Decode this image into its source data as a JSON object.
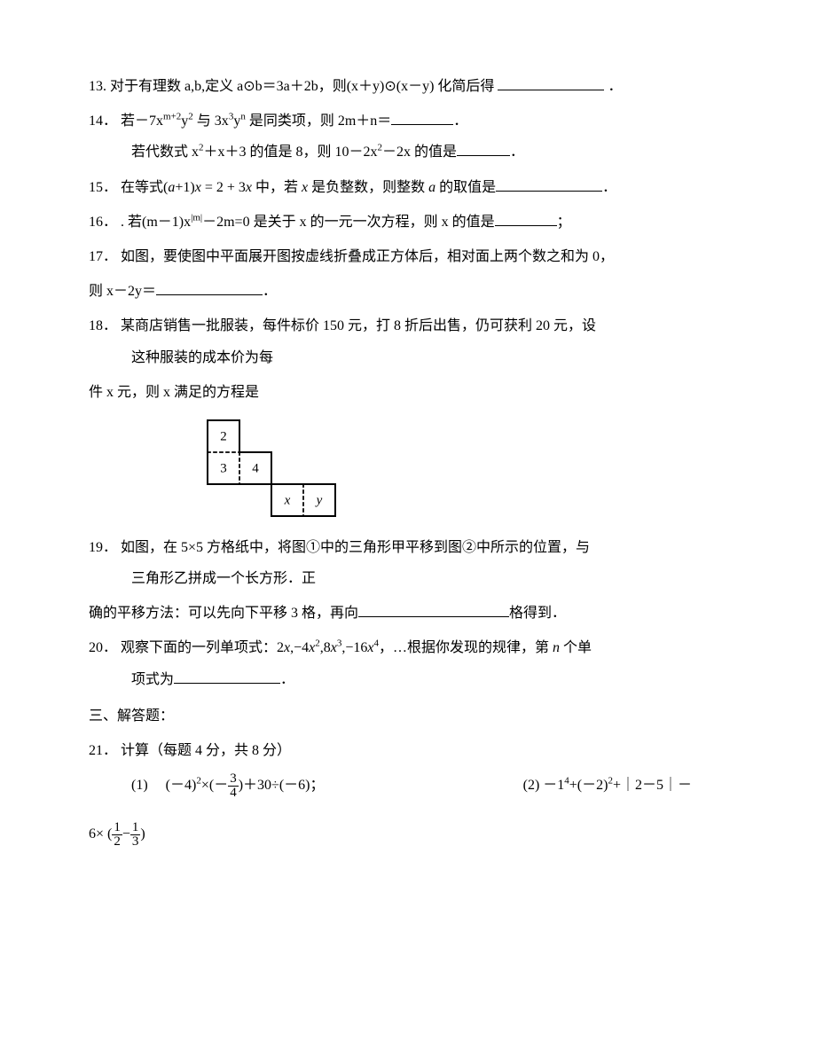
{
  "q13": {
    "num": "13.",
    "text_a": "对于有理数 a,b,定义 a⊙b＝3a＋2b，则(x＋y)⊙(x－y) 化简后得",
    "period": "．"
  },
  "q14": {
    "num": "14．",
    "line1_a": "若－7x",
    "line1_exp1": "m+2",
    "line1_b": "y",
    "line1_exp2": "2",
    "line1_c": " 与 3x",
    "line1_exp3": "3",
    "line1_d": "y",
    "line1_exp4": "n",
    "line1_e": " 是同类项，则 2m＋n＝",
    "line1_f": "．",
    "line2_a": "若代数式 x",
    "line2_exp1": "2",
    "line2_b": "＋x＋3 的值是 8，则 10－2x",
    "line2_exp2": "2",
    "line2_c": "－2x 的值是",
    "line2_d": "．"
  },
  "q15": {
    "num": "15．",
    "a": "在等式(",
    "i1": "a",
    "b": "+1)",
    "i2": "x",
    "c": " = 2 + 3",
    "i3": "x",
    "d": " 中，若 ",
    "i4": "x",
    "e": " 是负整数，则整数 ",
    "i5": "a",
    "f": " 的取值是",
    "g": "．"
  },
  "q16": {
    "num": "16．",
    "a": ". 若(m－1)x",
    "exp": "|m|",
    "b": "－2m=0 是关于 x 的一元一次方程，则 x 的值是",
    "c": "；"
  },
  "q17": {
    "num": "17．",
    "line1": "如图，要使图中平面展开图按虚线折叠成正方体后，相对面上两个数之和为 0，",
    "line2a": "则 x－2y＝",
    "line2b": "．"
  },
  "q18": {
    "num": "18．",
    "line1": "某商店销售一批服装，每件标价 150 元，打 8 折后出售，仍可获利 20 元，设",
    "line2": "这种服装的成本价为每",
    "line3": "件 x 元，则 x 满足的方程是"
  },
  "cube": {
    "c2": "2",
    "c3": "3",
    "c4": "4",
    "cx": "x",
    "cy": "y",
    "cellsize": 36,
    "stroke": "#000000",
    "dash": "4,3"
  },
  "q19": {
    "num": "19．",
    "line1": "如图，在 5×5 方格纸中，将图①中的三角形甲平移到图②中所示的位置，与",
    "line2": "三角形乙拼成一个长方形．正",
    "line3a": "确的平移方法：可以先向下平移 3 格，再向",
    "line3b": "格得到．"
  },
  "q20": {
    "num": "20．",
    "a": "观察下面的一列单项式：2",
    "i1": "x",
    "b": ",−4",
    "i2": "x",
    "e2": "2",
    "c": ",8",
    "i3": "x",
    "e3": "3",
    "d": ",−16",
    "i4": "x",
    "e4": "4",
    "e": "，…根据你发现的规律，第 ",
    "i5": "n",
    "f": " 个单",
    "line2a": "项式为",
    "line2b": "．"
  },
  "sec3": "三、解答题：",
  "q21": {
    "num": "21．",
    "title": " 计算（每题 4 分，共 8 分）",
    "p1_label": "(1)　",
    "p1_a": "(－4)",
    "p1_e1": "2",
    "p1_b": "×(－",
    "p1_frac_n": "3",
    "p1_frac_d": "4",
    "p1_c": ")＋30÷(－6)；",
    "p2_label": "(2)",
    "p2_a": "－1",
    "p2_e1": "4",
    "p2_b": "+(－2)",
    "p2_e2": "2",
    "p2_c": "+｜2－5｜－",
    "last_a": "6× (",
    "last_f1n": "1",
    "last_f1d": "2",
    "last_mid": "−",
    "last_f2n": "1",
    "last_f2d": "3",
    "last_b": ")"
  }
}
